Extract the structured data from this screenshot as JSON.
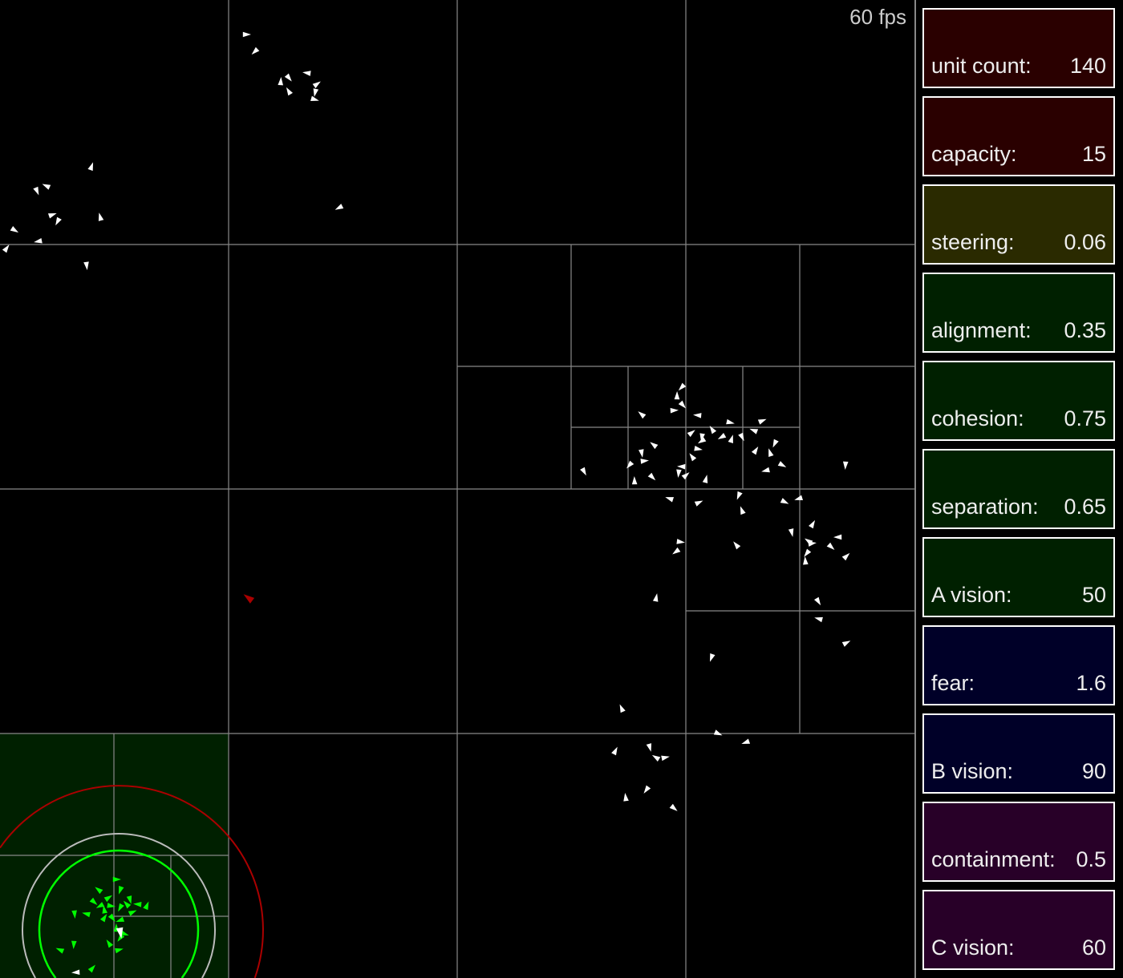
{
  "fps_label": "60 fps",
  "controls": [
    {
      "label": "unit count:",
      "value": "140",
      "color": "#2a0000"
    },
    {
      "label": "capacity:",
      "value": "15",
      "color": "#2a0000"
    },
    {
      "label": "steering:",
      "value": "0.06",
      "color": "#2a2a00"
    },
    {
      "label": "alignment:",
      "value": "0.35",
      "color": "#002000"
    },
    {
      "label": "cohesion:",
      "value": "0.75",
      "color": "#002000"
    },
    {
      "label": "separation:",
      "value": "0.65",
      "color": "#002000"
    },
    {
      "label": "A vision:",
      "value": "50",
      "color": "#002000"
    },
    {
      "label": "fear:",
      "value": "1.6",
      "color": "#000028"
    },
    {
      "label": "B vision:",
      "value": "90",
      "color": "#000028"
    },
    {
      "label": "containment:",
      "value": "0.5",
      "color": "#280028"
    },
    {
      "label": "C vision:",
      "value": "60",
      "color": "#280028"
    }
  ],
  "colors": {
    "boid": "#ffffff",
    "selected_boid": "#00ff00",
    "predator": "#aa0000",
    "grid": "#888888",
    "highlight_cell": "#002000"
  }
}
